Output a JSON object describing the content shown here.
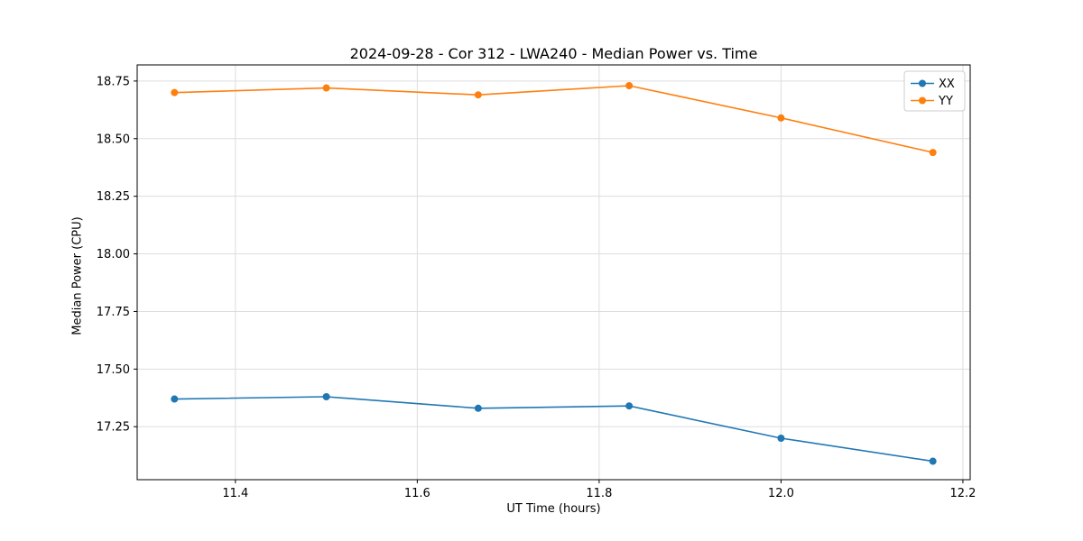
{
  "chart_data": {
    "type": "line",
    "title": "2024-09-28 - Cor 312 - LWA240 - Median Power vs. Time",
    "xlabel": "UT Time (hours)",
    "ylabel": "Median Power (CPU)",
    "x": [
      11.333,
      11.5,
      11.667,
      11.833,
      12.0,
      12.167
    ],
    "series": [
      {
        "name": "XX",
        "color": "#1f77b4",
        "values": [
          17.37,
          17.38,
          17.33,
          17.34,
          17.2,
          17.1
        ]
      },
      {
        "name": "YY",
        "color": "#ff7f0e",
        "values": [
          18.7,
          18.72,
          18.69,
          18.73,
          18.59,
          18.44
        ]
      }
    ],
    "xlim": [
      11.292,
      12.208
    ],
    "ylim": [
      17.02,
      18.82
    ],
    "xticks": [
      11.4,
      11.6,
      11.8,
      12.0,
      12.2
    ],
    "xtick_labels": [
      "11.4",
      "11.6",
      "11.8",
      "12.0",
      "12.2"
    ],
    "yticks": [
      17.25,
      17.5,
      17.75,
      18.0,
      18.25,
      18.5,
      18.75
    ],
    "ytick_labels": [
      "17.25",
      "17.50",
      "17.75",
      "18.00",
      "18.25",
      "18.50",
      "18.75"
    ],
    "grid": true,
    "legend_position": "upper right",
    "legend_entries": [
      "XX",
      "YY"
    ],
    "colors": {
      "grid": "#dddddd",
      "spine": "#000000",
      "legend_border": "#cccccc",
      "background": "#ffffff"
    }
  }
}
